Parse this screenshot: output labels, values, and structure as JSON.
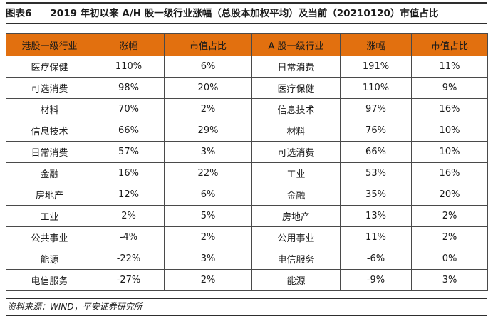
{
  "figure": {
    "label": "图表6",
    "title": "2019 年初以来 A/H 股一级行业涨幅（总股本加权平均）及当前（20210120）市值占比"
  },
  "table": {
    "columns": [
      "港股一级行业",
      "涨幅",
      "市值占比",
      "A 股一级行业",
      "涨幅",
      "市值占比"
    ],
    "rows": [
      [
        "医疗保健",
        "110%",
        "6%",
        "日常消费",
        "191%",
        "11%"
      ],
      [
        "可选消费",
        "98%",
        "20%",
        "医疗保健",
        "110%",
        "9%"
      ],
      [
        "材料",
        "70%",
        "2%",
        "信息技术",
        "97%",
        "16%"
      ],
      [
        "信息技术",
        "66%",
        "29%",
        "材料",
        "76%",
        "10%"
      ],
      [
        "日常消费",
        "57%",
        "3%",
        "可选消费",
        "66%",
        "10%"
      ],
      [
        "金融",
        "16%",
        "22%",
        "工业",
        "53%",
        "16%"
      ],
      [
        "房地产",
        "12%",
        "6%",
        "金融",
        "35%",
        "20%"
      ],
      [
        "工业",
        "2%",
        "5%",
        "房地产",
        "13%",
        "2%"
      ],
      [
        "公共事业",
        "-4%",
        "2%",
        "公用事业",
        "11%",
        "2%"
      ],
      [
        "能源",
        "-22%",
        "3%",
        "电信服务",
        "-6%",
        "0%"
      ],
      [
        "电信服务",
        "-27%",
        "2%",
        "能源",
        "-9%",
        "3%"
      ]
    ]
  },
  "source": {
    "text": "资料来源：WIND，平安证券研究所"
  },
  "colors": {
    "header_bg": "#e2700f",
    "border": "#4a4a4a",
    "rule": "#2e2e2e",
    "text": "#1a1a1a",
    "background": "#ffffff"
  }
}
